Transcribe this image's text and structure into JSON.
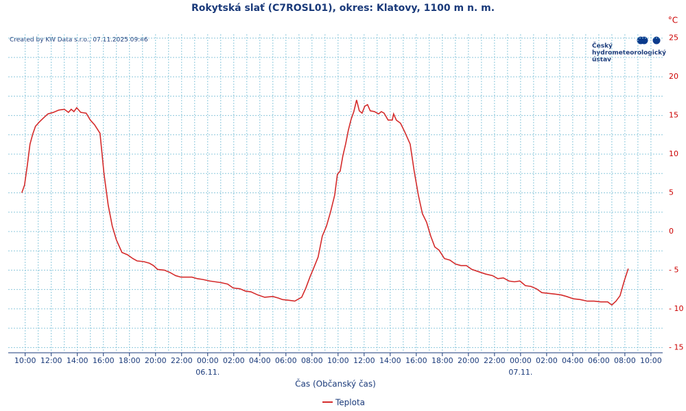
{
  "chart_data": {
    "type": "line",
    "title": "Rokytská slať (C7ROSL01), okres: Klatovy, 1100 m n. m.",
    "y_unit": "°C",
    "credit": "Created by KW Data s.r.o., 07.11.2025 09:46",
    "logo": [
      "Český",
      "hydrometeorologický",
      "ústav"
    ],
    "x_label": "Čas (Občanský čas)",
    "xlim": [
      -15.3,
      34.9
    ],
    "xticks": [
      {
        "value": -14,
        "label": "10:00"
      },
      {
        "value": -12,
        "label": "12:00"
      },
      {
        "value": -10,
        "label": "14:00"
      },
      {
        "value": -8,
        "label": "16:00"
      },
      {
        "value": -6,
        "label": "18:00"
      },
      {
        "value": -4,
        "label": "20:00"
      },
      {
        "value": -2,
        "label": "22:00"
      },
      {
        "value": 0,
        "label": "00:00"
      },
      {
        "value": 2,
        "label": "02:00"
      },
      {
        "value": 4,
        "label": "04:00"
      },
      {
        "value": 6,
        "label": "06:00"
      },
      {
        "value": 8,
        "label": "08:00"
      },
      {
        "value": 10,
        "label": "10:00"
      },
      {
        "value": 12,
        "label": "12:00"
      },
      {
        "value": 14,
        "label": "14:00"
      },
      {
        "value": 16,
        "label": "16:00"
      },
      {
        "value": 18,
        "label": "18:00"
      },
      {
        "value": 20,
        "label": "20:00"
      },
      {
        "value": 22,
        "label": "22:00"
      },
      {
        "value": 24,
        "label": "00:00"
      },
      {
        "value": 26,
        "label": "02:00"
      },
      {
        "value": 28,
        "label": "04:00"
      },
      {
        "value": 30,
        "label": "06:00"
      },
      {
        "value": 32,
        "label": "08:00"
      },
      {
        "value": 34,
        "label": "10:00"
      }
    ],
    "date_labels": [
      {
        "value": 0,
        "label": "06.11."
      },
      {
        "value": 24,
        "label": "07.11."
      }
    ],
    "ylim": [
      -15.5,
      25.5
    ],
    "yticks": [
      {
        "value": -15,
        "label": "- 15"
      },
      {
        "value": -10,
        "label": "- 10"
      },
      {
        "value": -5,
        "label": "- 5"
      },
      0,
      5,
      10,
      15,
      20,
      25
    ],
    "grid": true,
    "x": [
      -14.26,
      -14.05,
      -13.84,
      -13.63,
      -13.42,
      -13.21,
      -12.89,
      -12.58,
      -12.26,
      -11.84,
      -11.42,
      -11.0,
      -10.68,
      -10.47,
      -10.26,
      -10.05,
      -9.74,
      -9.32,
      -9.0,
      -8.68,
      -8.26,
      -7.95,
      -7.63,
      -7.32,
      -7.0,
      -6.58,
      -6.16,
      -5.74,
      -5.42,
      -4.89,
      -4.47,
      -4.16,
      -3.84,
      -3.32,
      -2.89,
      -2.47,
      -2.05,
      -1.63,
      -1.21,
      -0.79,
      -0.37,
      0.16,
      0.58,
      1.0,
      1.53,
      1.95,
      2.47,
      2.89,
      3.32,
      3.84,
      4.37,
      5.0,
      5.42,
      5.74,
      6.26,
      6.68,
      7.21,
      7.53,
      7.84,
      8.16,
      8.47,
      8.79,
      9.11,
      9.42,
      9.74,
      9.95,
      10.16,
      10.37,
      10.58,
      10.79,
      11.0,
      11.21,
      11.42,
      11.63,
      11.84,
      12.05,
      12.26,
      12.47,
      12.79,
      13.11,
      13.32,
      13.53,
      13.84,
      14.16,
      14.26,
      14.47,
      14.79,
      15.11,
      15.53,
      15.84,
      16.16,
      16.47,
      16.79,
      17.11,
      17.42,
      17.74,
      18.16,
      18.58,
      19.0,
      19.42,
      19.84,
      20.26,
      20.79,
      21.32,
      21.84,
      22.26,
      22.68,
      23.11,
      23.53,
      23.95,
      24.37,
      24.79,
      25.21,
      25.63,
      26.16,
      26.68,
      27.11,
      27.53,
      28.05,
      28.58,
      29.11,
      29.63,
      30.16,
      30.68,
      31.0,
      31.32,
      31.63,
      31.95,
      32.26
    ],
    "series": [
      {
        "name": "Teplota",
        "color": "#d42a2a",
        "values": [
          5.0,
          6.0,
          8.5,
          11.3,
          12.6,
          13.6,
          14.2,
          14.7,
          15.2,
          15.4,
          15.7,
          15.8,
          15.4,
          15.8,
          15.5,
          16.0,
          15.4,
          15.3,
          14.4,
          13.8,
          12.7,
          7.4,
          3.4,
          0.7,
          -1.1,
          -2.7,
          -3.0,
          -3.5,
          -3.8,
          -3.9,
          -4.1,
          -4.4,
          -4.9,
          -5.0,
          -5.3,
          -5.7,
          -5.9,
          -5.9,
          -5.9,
          -6.1,
          -6.2,
          -6.4,
          -6.5,
          -6.6,
          -6.8,
          -7.3,
          -7.4,
          -7.7,
          -7.8,
          -8.2,
          -8.5,
          -8.4,
          -8.6,
          -8.8,
          -8.9,
          -9.0,
          -8.5,
          -7.3,
          -5.9,
          -4.6,
          -3.3,
          -0.6,
          0.7,
          2.5,
          4.7,
          7.4,
          7.8,
          9.8,
          11.3,
          13.1,
          14.5,
          15.5,
          17.0,
          15.6,
          15.3,
          16.2,
          16.4,
          15.6,
          15.5,
          15.2,
          15.5,
          15.3,
          14.4,
          14.4,
          15.2,
          14.4,
          14.0,
          12.9,
          11.3,
          7.8,
          4.7,
          2.3,
          1.2,
          -0.6,
          -2.0,
          -2.4,
          -3.5,
          -3.7,
          -4.2,
          -4.4,
          -4.4,
          -4.9,
          -5.2,
          -5.5,
          -5.7,
          -6.1,
          -6.0,
          -6.4,
          -6.5,
          -6.4,
          -7.0,
          -7.1,
          -7.4,
          -7.9,
          -8.0,
          -8.1,
          -8.2,
          -8.4,
          -8.7,
          -8.8,
          -9.0,
          -9.0,
          -9.1,
          -9.1,
          -9.5,
          -9.0,
          -8.3,
          -6.4,
          -4.8
        ]
      }
    ]
  }
}
